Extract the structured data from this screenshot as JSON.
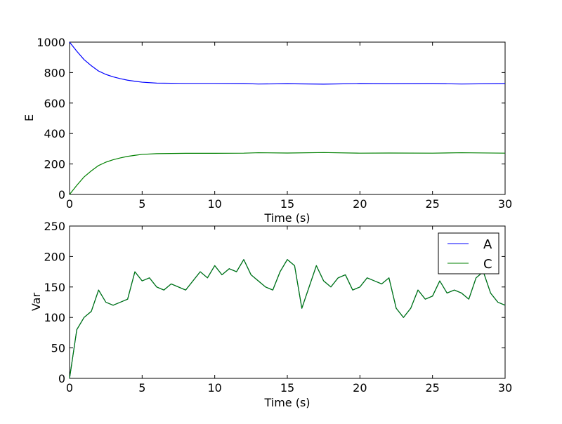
{
  "chart_data": [
    {
      "type": "line",
      "xlabel": "Time (s)",
      "ylabel": "E",
      "xlim": [
        0,
        30
      ],
      "ylim": [
        0,
        1000
      ],
      "x_ticks": [
        "0",
        "5",
        "10",
        "15",
        "20",
        "25",
        "30"
      ],
      "y_ticks": [
        "0",
        "200",
        "400",
        "600",
        "800",
        "1000"
      ],
      "grid": false,
      "legend": false,
      "series": [
        {
          "color": "#0000ff",
          "x": [
            0,
            0.5,
            1,
            1.5,
            2,
            2.5,
            3,
            3.5,
            4,
            4.5,
            5,
            6,
            7,
            8,
            10,
            12,
            13,
            15,
            17.5,
            20,
            22,
            25,
            27,
            30
          ],
          "values": [
            1000,
            940,
            885,
            845,
            810,
            788,
            772,
            760,
            750,
            743,
            737,
            731,
            730,
            729,
            729,
            728,
            725,
            727,
            724,
            728,
            727,
            728,
            725,
            728
          ]
        },
        {
          "color": "#008000",
          "x": [
            0,
            0.5,
            1,
            1.5,
            2,
            2.5,
            3,
            3.5,
            4,
            4.5,
            5,
            6,
            7,
            8,
            10,
            12,
            13,
            15,
            17.5,
            20,
            22,
            25,
            27,
            30
          ],
          "values": [
            0,
            60,
            115,
            155,
            190,
            212,
            228,
            240,
            250,
            257,
            263,
            268,
            269,
            270,
            270,
            271,
            274,
            272,
            275,
            271,
            272,
            271,
            274,
            271
          ]
        }
      ]
    },
    {
      "type": "line",
      "xlabel": "Time (s)",
      "ylabel": "Var",
      "xlim": [
        0,
        30
      ],
      "ylim": [
        0,
        250
      ],
      "x_ticks": [
        "0",
        "5",
        "10",
        "15",
        "20",
        "25",
        "30"
      ],
      "y_ticks": [
        "0",
        "50",
        "100",
        "150",
        "200",
        "250"
      ],
      "grid": false,
      "legend_position": "top-right",
      "series": [
        {
          "name": "A",
          "color": "#0000ff",
          "x": [
            0,
            0.5,
            1,
            1.5,
            2,
            2.5,
            3,
            3.5,
            4,
            4.5,
            5,
            5.5,
            6,
            6.5,
            7,
            7.5,
            8,
            8.5,
            9,
            9.5,
            10,
            10.5,
            11,
            11.5,
            12,
            12.5,
            13,
            13.5,
            14,
            14.5,
            15,
            15.5,
            16,
            16.5,
            17,
            17.5,
            18,
            18.5,
            19,
            19.5,
            20,
            20.5,
            21,
            21.5,
            22,
            22.5,
            23,
            23.5,
            24,
            24.5,
            25,
            25.5,
            26,
            26.5,
            27,
            27.5,
            28,
            28.5,
            29,
            29.5,
            30
          ],
          "values": [
            0,
            80,
            100,
            110,
            145,
            125,
            120,
            125,
            130,
            175,
            160,
            165,
            150,
            145,
            155,
            150,
            145,
            160,
            175,
            165,
            185,
            170,
            180,
            175,
            195,
            170,
            160,
            150,
            145,
            175,
            195,
            185,
            115,
            150,
            185,
            160,
            150,
            165,
            170,
            145,
            150,
            165,
            160,
            155,
            165,
            115,
            100,
            115,
            145,
            130,
            135,
            160,
            140,
            145,
            140,
            130,
            165,
            175,
            140,
            125,
            120
          ]
        },
        {
          "name": "C",
          "color": "#008000",
          "x": [
            0,
            0.5,
            1,
            1.5,
            2,
            2.5,
            3,
            3.5,
            4,
            4.5,
            5,
            5.5,
            6,
            6.5,
            7,
            7.5,
            8,
            8.5,
            9,
            9.5,
            10,
            10.5,
            11,
            11.5,
            12,
            12.5,
            13,
            13.5,
            14,
            14.5,
            15,
            15.5,
            16,
            16.5,
            17,
            17.5,
            18,
            18.5,
            19,
            19.5,
            20,
            20.5,
            21,
            21.5,
            22,
            22.5,
            23,
            23.5,
            24,
            24.5,
            25,
            25.5,
            26,
            26.5,
            27,
            27.5,
            28,
            28.5,
            29,
            29.5,
            30
          ],
          "values": [
            0,
            80,
            100,
            110,
            145,
            125,
            120,
            125,
            130,
            175,
            160,
            165,
            150,
            145,
            155,
            150,
            145,
            160,
            175,
            165,
            185,
            170,
            180,
            175,
            195,
            170,
            160,
            150,
            145,
            175,
            195,
            185,
            115,
            150,
            185,
            160,
            150,
            165,
            170,
            145,
            150,
            165,
            160,
            155,
            165,
            115,
            100,
            115,
            145,
            130,
            135,
            160,
            140,
            145,
            140,
            130,
            165,
            175,
            140,
            125,
            120
          ]
        }
      ]
    }
  ]
}
